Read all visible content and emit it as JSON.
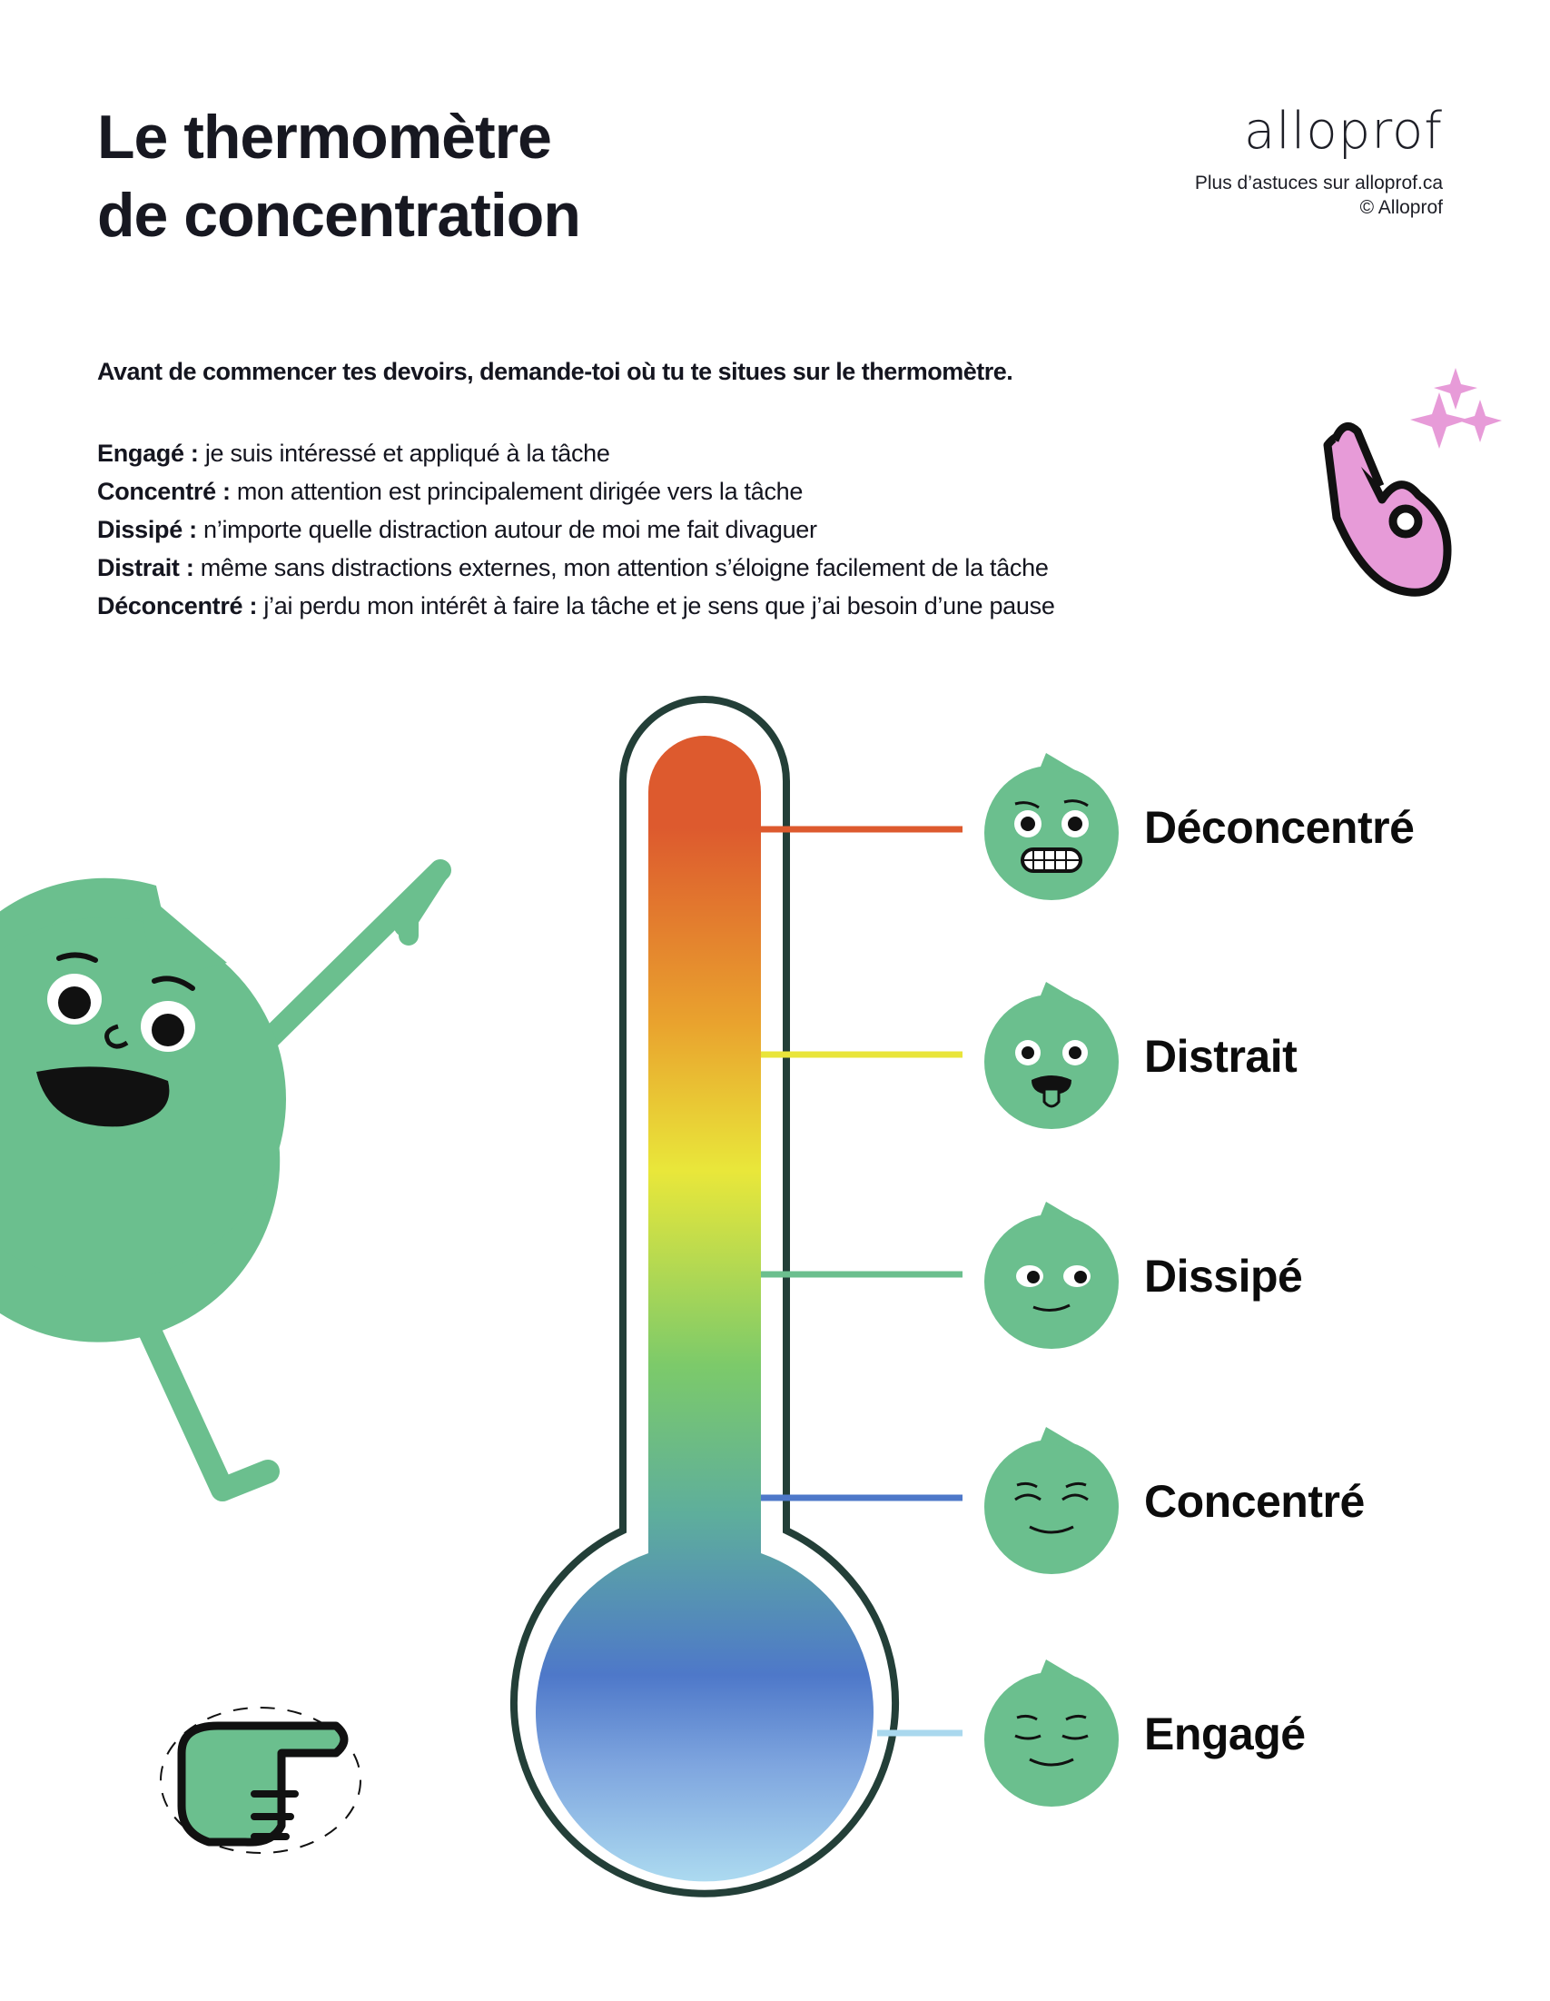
{
  "header": {
    "title_line1": "Le thermomètre",
    "title_line2": "de concentration",
    "logo": "alloprof",
    "more_tips": "Plus d’astuces sur alloprof.ca",
    "copyright": "© Alloprof"
  },
  "intro": "Avant de commencer tes devoirs, demande-toi où tu te situes sur le thermomètre.",
  "definitions": [
    {
      "term": "Engagé :",
      "text": " je suis intéressé et appliqué à la tâche"
    },
    {
      "term": "Concentré :",
      "text": " mon attention est principalement dirigée vers la tâche"
    },
    {
      "term": "Dissipé :",
      "text": " n’importe quelle distraction autour de moi me fait divaguer"
    },
    {
      "term": "Distrait :",
      "text": " même sans distractions externes, mon attention s’éloigne facilement de la tâche"
    },
    {
      "term": "Déconcentré :",
      "text": " j’ai perdu mon intérêt à faire la tâche et je sens que j’ai besoin d’une pause"
    }
  ],
  "levels": [
    {
      "label": "Déconcentré",
      "color": "#dd5a2e",
      "face": "grimace-face-icon"
    },
    {
      "label": "Distrait",
      "color": "#e9e53a",
      "face": "tongue-out-face-icon"
    },
    {
      "label": "Dissipé",
      "color": "#6bbf8e",
      "face": "sideways-glance-face-icon"
    },
    {
      "label": "Concentré",
      "color": "#4e78c9",
      "face": "calm-face-icon"
    },
    {
      "label": "Engagé",
      "color": "#aad8ee",
      "face": "serene-face-icon"
    }
  ],
  "colors": {
    "character_green": "#6bbf8e",
    "outline": "#233f38",
    "pink": "#e79bd8"
  }
}
